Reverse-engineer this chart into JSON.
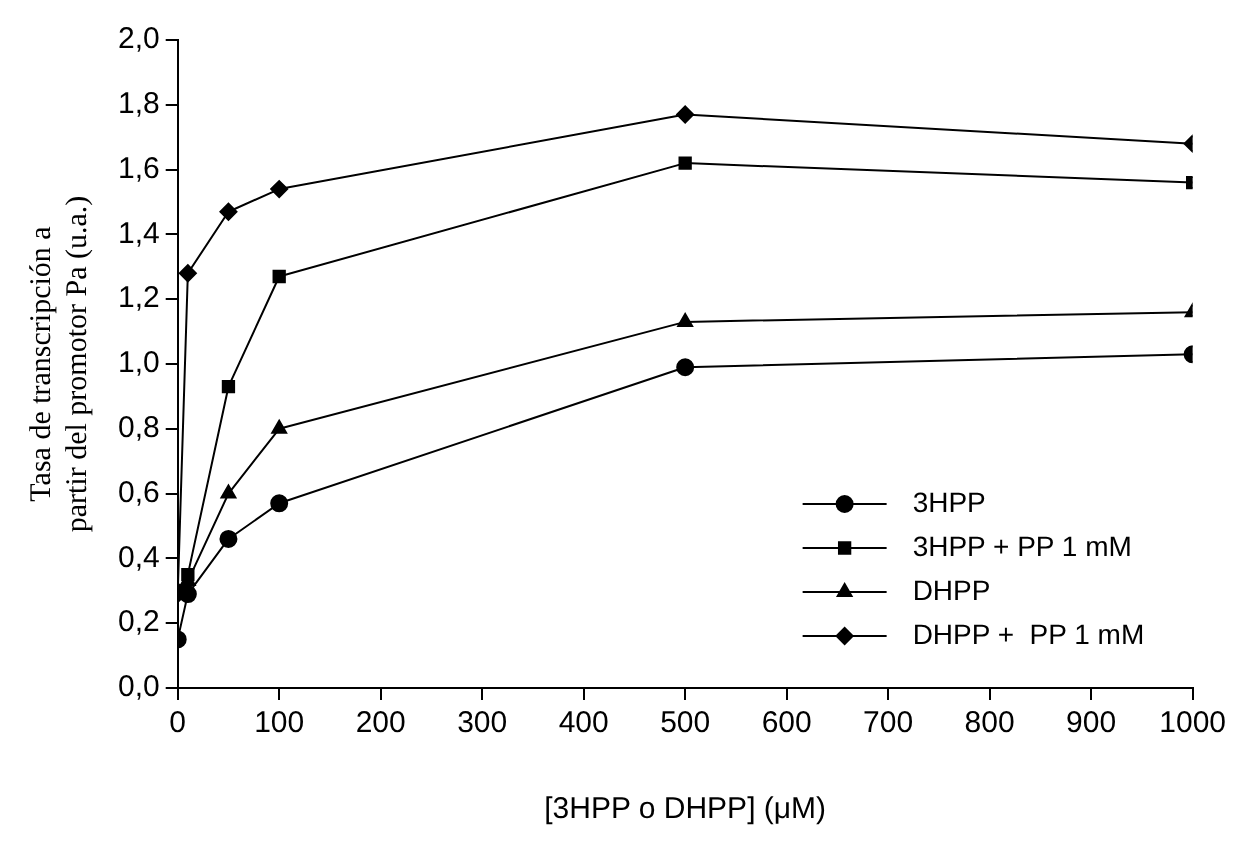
{
  "chart_data": {
    "type": "line",
    "xlabel": "[3HPP o DHPP] (μM)",
    "ylabel": "Tasa de transcripción a partir del promotor Pa (u.a.)",
    "x": [
      0,
      10,
      50,
      100,
      500,
      1000
    ],
    "series": [
      {
        "name": "3HPP",
        "color": "#000000",
        "marker": "circle",
        "values": [
          0.15,
          0.29,
          0.46,
          0.57,
          0.99,
          1.03
        ]
      },
      {
        "name": "3HPP + PP 1 mM",
        "color": "#000000",
        "marker": "square",
        "values": [
          0.3,
          0.35,
          0.93,
          1.27,
          1.62,
          1.56
        ]
      },
      {
        "name": "DHPP",
        "color": "#000000",
        "marker": "triangle",
        "values": [
          0.3,
          0.33,
          0.6,
          0.8,
          1.13,
          1.16
        ]
      },
      {
        "name": "DHPP +  PP 1 mM",
        "color": "#000000",
        "marker": "diamond",
        "values": [
          0.29,
          1.28,
          1.47,
          1.54,
          1.77,
          1.68
        ]
      }
    ],
    "xlim": [
      0,
      1000
    ],
    "xticks": [
      0,
      100,
      200,
      300,
      400,
      500,
      600,
      700,
      800,
      900,
      1000
    ],
    "ylim": [
      0,
      2
    ],
    "yticks": [
      {
        "value": 0,
        "label": "0,0"
      },
      {
        "value": 0.2,
        "label": "0,2"
      },
      {
        "value": 0.4,
        "label": "0,4"
      },
      {
        "value": 0.6,
        "label": "0,6"
      },
      {
        "value": 0.8,
        "label": "0,8"
      },
      {
        "value": 1,
        "label": "1,0"
      },
      {
        "value": 1.2,
        "label": "1,2"
      },
      {
        "value": 1.4,
        "label": "1,4"
      },
      {
        "value": 1.6,
        "label": "1,6"
      },
      {
        "value": 1.8,
        "label": "1,8"
      },
      {
        "value": 2,
        "label": "2,0"
      }
    ],
    "grid": false,
    "legend": "bottom right",
    "line_style": "solid"
  }
}
